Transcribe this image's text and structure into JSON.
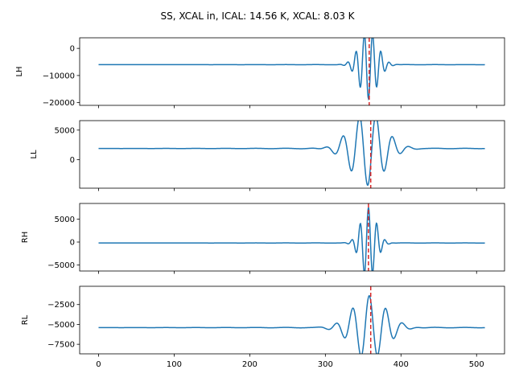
{
  "title": "SS, XCAL in, ICAL: 14.56 K, XCAL: 8.03 K",
  "colors": {
    "series": "#1f77b4",
    "marker": "#d62728",
    "axes": "#000000"
  },
  "chart_data": [
    {
      "type": "line",
      "ylabel": "LH",
      "xlim": [
        -25,
        537
      ],
      "ylim": [
        -21000,
        3900
      ],
      "yticks": [
        -20000,
        -10000,
        0
      ],
      "ytick_labels": [
        "−20000",
        "−10000",
        "0"
      ],
      "xticks": [
        0,
        100,
        200,
        300,
        400,
        500
      ],
      "xtick_labels": [],
      "baseline": -6000,
      "peak_center": 357,
      "peak_amplitude": -12500,
      "ripple_period": 11,
      "envelope_width": 12,
      "far_ripple": 55,
      "red_line_x": 358
    },
    {
      "type": "line",
      "ylabel": "LL",
      "xlim": [
        -25,
        537
      ],
      "ylim": [
        -4800,
        6600
      ],
      "yticks": [
        0,
        5000
      ],
      "ytick_labels": [
        "0",
        "5000"
      ],
      "xticks": [
        0,
        100,
        200,
        300,
        400,
        500
      ],
      "xtick_labels": [],
      "baseline": 1900,
      "peak_center": 356,
      "peak_amplitude": -6200,
      "ripple_period": 22,
      "envelope_width": 22,
      "far_ripple": 80,
      "red_line_x": 360
    },
    {
      "type": "line",
      "ylabel": "RH",
      "xlim": [
        -25,
        537
      ],
      "ylim": [
        -6300,
        8400
      ],
      "yticks": [
        -5000,
        0,
        5000
      ],
      "ytick_labels": [
        "−5000",
        "0",
        "5000"
      ],
      "xticks": [
        0,
        100,
        200,
        300,
        400,
        500
      ],
      "xtick_labels": [],
      "baseline": -200,
      "peak_center": 357,
      "peak_amplitude": 7700,
      "ripple_period": 11,
      "envelope_width": 10,
      "far_ripple": 40,
      "red_line_x": 357
    },
    {
      "type": "line",
      "ylabel": "RL",
      "xlim": [
        -25,
        537
      ],
      "ylim": [
        -8700,
        -200
      ],
      "yticks": [
        -7500,
        -5000,
        -2500
      ],
      "ytick_labels": [
        "−7500",
        "−5000",
        "−2500"
      ],
      "xticks": [
        0,
        100,
        200,
        300,
        400,
        500
      ],
      "xtick_labels": [
        "0",
        "100",
        "200",
        "300",
        "400",
        "500"
      ],
      "baseline": -5400,
      "peak_center": 358,
      "peak_amplitude": 4000,
      "ripple_period": 22,
      "envelope_width": 22,
      "far_ripple": 60,
      "red_line_x": 360
    }
  ]
}
